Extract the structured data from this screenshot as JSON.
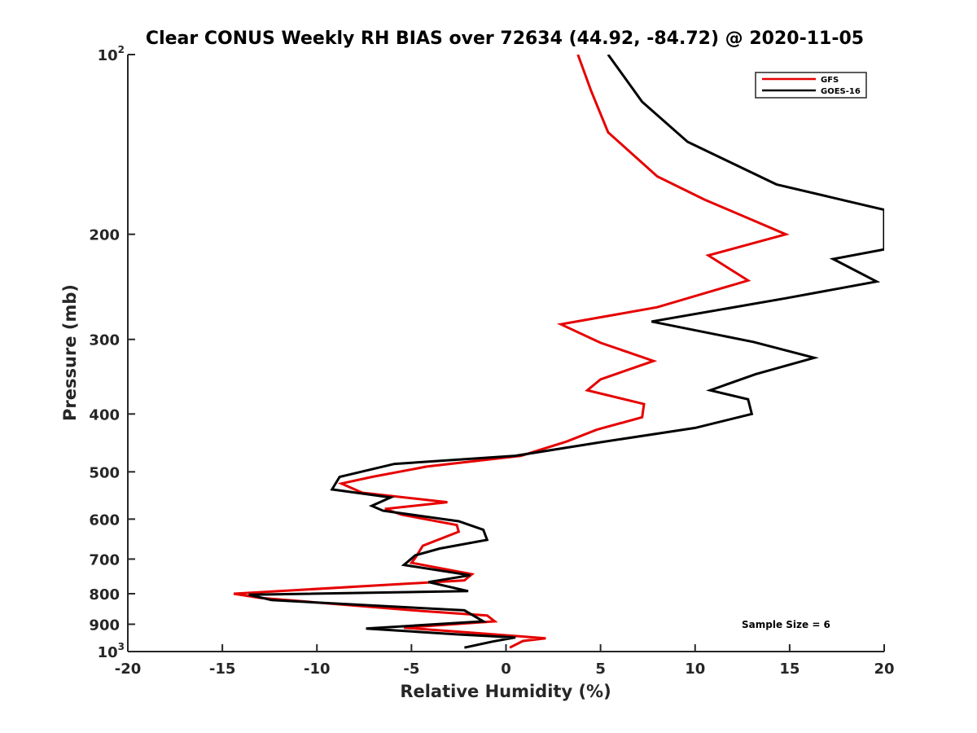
{
  "chart_data": {
    "type": "line",
    "title": "Clear CONUS Weekly RH BIAS over 72634 (44.92, -84.72) @ 2020-11-05",
    "xlabel": "Relative Humidity (%)",
    "ylabel": "Pressure (mb)",
    "xlim": [
      -20,
      20
    ],
    "ylim": [
      100,
      1000
    ],
    "yscale": "log",
    "y_reversed": true,
    "x_ticks": [
      -20,
      -15,
      -10,
      -5,
      0,
      5,
      10,
      15,
      20
    ],
    "x_tick_labels": [
      "-20",
      "-15",
      "-10",
      "-5",
      "0",
      "5",
      "10",
      "15",
      "20"
    ],
    "y_ticks": [
      {
        "value": 100,
        "base": "10",
        "exp": "2"
      },
      {
        "value": 200,
        "label": "200"
      },
      {
        "value": 300,
        "label": "300"
      },
      {
        "value": 400,
        "label": "400"
      },
      {
        "value": 500,
        "label": "500"
      },
      {
        "value": 600,
        "label": "600"
      },
      {
        "value": 700,
        "label": "700"
      },
      {
        "value": 800,
        "label": "800"
      },
      {
        "value": 900,
        "label": "900"
      },
      {
        "value": 1000,
        "base": "10",
        "exp": "3"
      }
    ],
    "legend": {
      "location": "top-right",
      "entries": [
        "GFS",
        "GOES-16"
      ]
    },
    "annotation": "Sample Size = 6",
    "series": [
      {
        "name": "GFS",
        "color": "#e60000",
        "points": [
          [
            3.8,
            100
          ],
          [
            4.5,
            115
          ],
          [
            5.4,
            135
          ],
          [
            8.0,
            160
          ],
          [
            10.5,
            175
          ],
          [
            14.8,
            200
          ],
          [
            10.7,
            217
          ],
          [
            12.8,
            239
          ],
          [
            8.0,
            265
          ],
          [
            2.9,
            283
          ],
          [
            5.0,
            304
          ],
          [
            7.8,
            326
          ],
          [
            5.0,
            350
          ],
          [
            4.3,
            365
          ],
          [
            7.3,
            385
          ],
          [
            7.2,
            405
          ],
          [
            4.8,
            425
          ],
          [
            3.2,
            445
          ],
          [
            0.8,
            470
          ],
          [
            -4.2,
            490
          ],
          [
            -7.1,
            510
          ],
          [
            -8.7,
            523
          ],
          [
            -7.6,
            542
          ],
          [
            -3.1,
            562
          ],
          [
            -6.4,
            577
          ],
          [
            -5.5,
            590
          ],
          [
            -2.6,
            614
          ],
          [
            -2.5,
            630
          ],
          [
            -4.4,
            665
          ],
          [
            -4.8,
            697
          ],
          [
            -5.0,
            710
          ],
          [
            -1.8,
            742
          ],
          [
            -2.2,
            760
          ],
          [
            -14.4,
            800
          ],
          [
            -13.0,
            813
          ],
          [
            -4.5,
            855
          ],
          [
            -1.0,
            870
          ],
          [
            -0.6,
            890
          ],
          [
            -5.4,
            912
          ],
          [
            -1.8,
            930
          ],
          [
            2.1,
            950
          ],
          [
            0.9,
            960
          ],
          [
            0.2,
            985
          ]
        ]
      },
      {
        "name": "GOES-16",
        "color": "#000000",
        "points": [
          [
            5.4,
            100
          ],
          [
            7.2,
            120
          ],
          [
            9.6,
            140
          ],
          [
            14.3,
            165
          ],
          [
            20.0,
            182
          ],
          [
            20.0,
            212
          ],
          [
            17.3,
            220
          ],
          [
            19.6,
            240
          ],
          [
            14.8,
            256
          ],
          [
            7.7,
            280
          ],
          [
            13.1,
            303
          ],
          [
            16.3,
            322
          ],
          [
            13.2,
            343
          ],
          [
            10.8,
            365
          ],
          [
            12.8,
            378
          ],
          [
            13.0,
            400
          ],
          [
            10.0,
            422
          ],
          [
            5.0,
            446
          ],
          [
            0.5,
            470
          ],
          [
            -5.9,
            485
          ],
          [
            -8.8,
            510
          ],
          [
            -9.2,
            535
          ],
          [
            -6.1,
            552
          ],
          [
            -7.1,
            570
          ],
          [
            -6.5,
            581
          ],
          [
            -2.5,
            605
          ],
          [
            -1.2,
            625
          ],
          [
            -1.0,
            650
          ],
          [
            -3.5,
            672
          ],
          [
            -4.8,
            690
          ],
          [
            -5.4,
            716
          ],
          [
            -1.9,
            745
          ],
          [
            -4.1,
            765
          ],
          [
            -2.0,
            792
          ],
          [
            -13.6,
            803
          ],
          [
            -12.4,
            820
          ],
          [
            -2.2,
            853
          ],
          [
            -1.2,
            890
          ],
          [
            -7.4,
            915
          ],
          [
            -2.6,
            936
          ],
          [
            0.5,
            947
          ],
          [
            -0.7,
            962
          ],
          [
            -2.2,
            985
          ]
        ]
      }
    ]
  }
}
